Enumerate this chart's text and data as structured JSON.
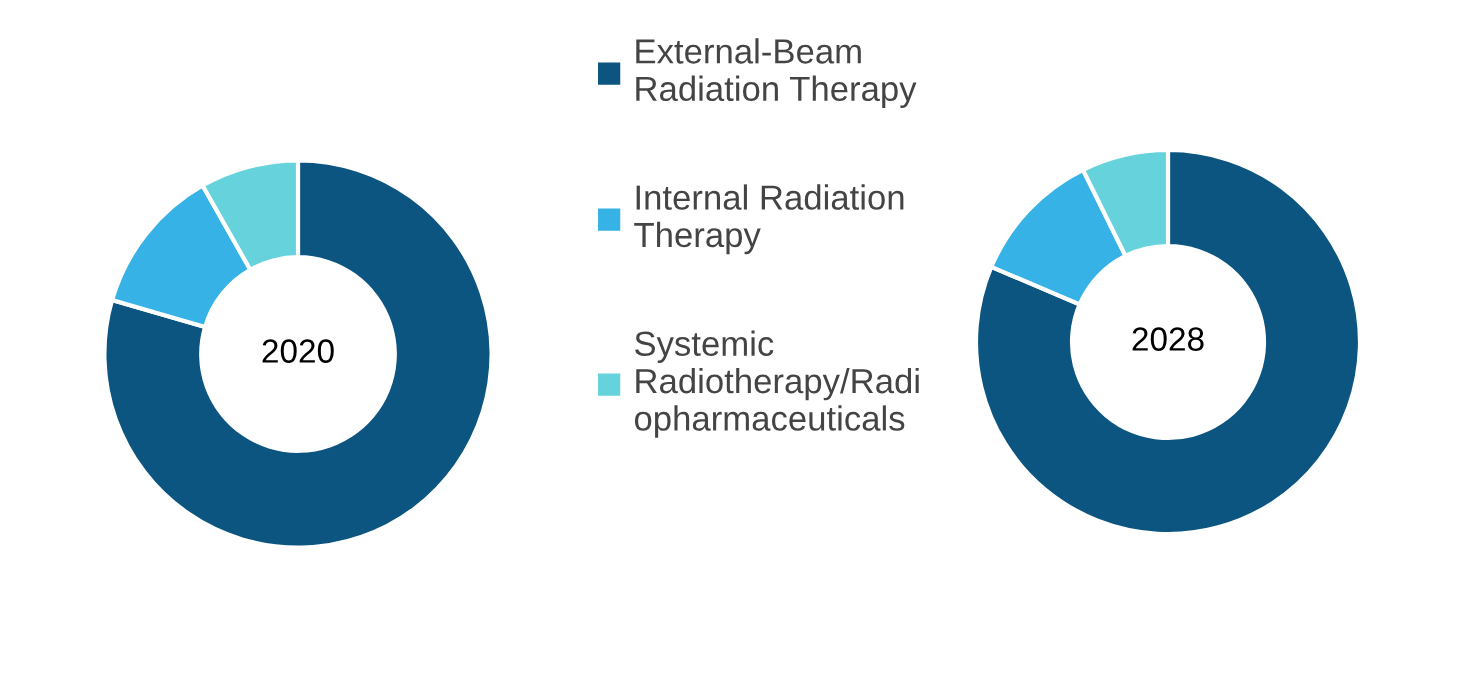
{
  "chart_data": [
    {
      "type": "donut",
      "title": "2020",
      "categories": [
        "External-Beam\nRadiation Therapy",
        "Internal Radiation\nTherapy",
        "Systemic\nRadiotherapy/Radi\nopharmaceuticals"
      ],
      "values": [
        79.5,
        12.3,
        8.2
      ],
      "colors": [
        "#0b5580",
        "#36b2e6",
        "#66d3dc"
      ],
      "legend": "right"
    },
    {
      "type": "donut",
      "title": "2028",
      "values": [
        81.4,
        11.3,
        7.3
      ],
      "colors": [
        "#0b5580",
        "#36b2e6",
        "#66d3dc"
      ]
    }
  ]
}
